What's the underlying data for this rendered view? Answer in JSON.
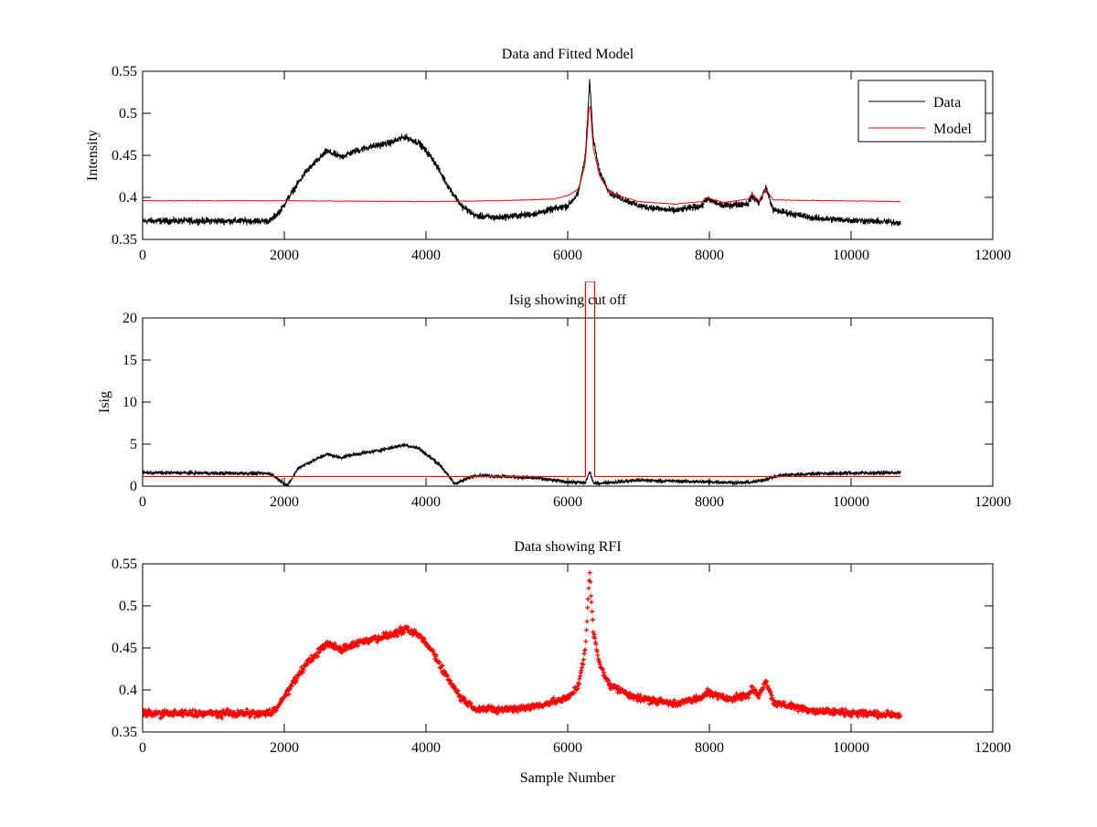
{
  "chart_data": [
    {
      "type": "line",
      "title": "Data and Fitted Model",
      "xlabel": "",
      "ylabel": "Intensity",
      "xlim": [
        0,
        12000
      ],
      "ylim": [
        0.35,
        0.55
      ],
      "xticks": [
        "0",
        "2000",
        "4000",
        "6000",
        "8000",
        "10000",
        "12000"
      ],
      "yticks": [
        "0.35",
        "0.4",
        "0.45",
        "0.5",
        "0.55"
      ],
      "legend": {
        "placement": "top-right",
        "entries": [
          "Data",
          "Model"
        ]
      },
      "series": [
        {
          "name": "Data",
          "color": "#000000",
          "noise": 0.006,
          "x": [
            0,
            1800,
            1950,
            2100,
            2300,
            2600,
            2800,
            3000,
            3200,
            3500,
            3700,
            3900,
            4100,
            4300,
            4500,
            4700,
            5000,
            5500,
            6000,
            6150,
            6250,
            6310,
            6360,
            6450,
            6600,
            7000,
            7500,
            7900,
            7950,
            8200,
            8550,
            8600,
            8700,
            8800,
            8900,
            9500,
            10700
          ],
          "y": [
            0.372,
            0.372,
            0.385,
            0.405,
            0.43,
            0.455,
            0.448,
            0.455,
            0.46,
            0.465,
            0.472,
            0.465,
            0.445,
            0.415,
            0.39,
            0.378,
            0.376,
            0.38,
            0.39,
            0.405,
            0.45,
            0.54,
            0.47,
            0.43,
            0.405,
            0.39,
            0.384,
            0.39,
            0.398,
            0.39,
            0.393,
            0.402,
            0.393,
            0.412,
            0.385,
            0.375,
            0.37
          ]
        },
        {
          "name": "Model",
          "color": "#ff0000",
          "noise": 0.0005,
          "x": [
            0,
            2000,
            4000,
            5000,
            5800,
            6000,
            6150,
            6250,
            6310,
            6360,
            6450,
            6600,
            7000,
            7500,
            7900,
            7950,
            8200,
            8550,
            8600,
            8700,
            8800,
            8900,
            10700
          ],
          "y": [
            0.396,
            0.396,
            0.395,
            0.396,
            0.398,
            0.402,
            0.41,
            0.44,
            0.52,
            0.46,
            0.425,
            0.405,
            0.395,
            0.392,
            0.395,
            0.4,
            0.394,
            0.398,
            0.404,
            0.396,
            0.41,
            0.397,
            0.395
          ]
        }
      ]
    },
    {
      "type": "line",
      "title": "Isig showing cut off",
      "xlabel": "",
      "ylabel": "Isig",
      "xlim": [
        0,
        12000
      ],
      "ylim": [
        0,
        20
      ],
      "xticks": [
        "0",
        "2000",
        "4000",
        "6000",
        "8000",
        "10000",
        "12000"
      ],
      "yticks": [
        "0",
        "5",
        "10",
        "15",
        "20"
      ],
      "series": [
        {
          "name": "Isig",
          "color": "#000000",
          "noise": 0.35,
          "x": [
            0,
            1800,
            1950,
            2050,
            2200,
            2600,
            2800,
            3000,
            3300,
            3700,
            3900,
            4200,
            4400,
            4500,
            4700,
            5500,
            6000,
            6250,
            6310,
            6370,
            6500,
            7000,
            8000,
            8500,
            8700,
            9000,
            9500,
            10700
          ],
          "y": [
            1.6,
            1.5,
            0.6,
            0.1,
            2.2,
            3.8,
            3.4,
            3.8,
            4.2,
            4.9,
            4.5,
            2.5,
            0.3,
            0.6,
            1.3,
            1.0,
            0.5,
            0.4,
            1.7,
            0.3,
            0.4,
            0.7,
            0.5,
            0.4,
            0.6,
            1.3,
            1.5,
            1.6
          ]
        },
        {
          "name": "Cut off",
          "color": "#ff0000",
          "threshold": 1.15,
          "cut_regions": [
            [
              6250,
              6380
            ]
          ],
          "x_range": [
            0,
            10700
          ]
        }
      ]
    },
    {
      "type": "scatter",
      "title": "Data showing RFI",
      "xlabel": "Sample Number",
      "ylabel": "",
      "xlim": [
        0,
        12000
      ],
      "ylim": [
        0.35,
        0.55
      ],
      "xticks": [
        "0",
        "2000",
        "4000",
        "6000",
        "8000",
        "10000",
        "12000"
      ],
      "yticks": [
        "0.35",
        "0.4",
        "0.45",
        "0.5",
        "0.55"
      ],
      "series": [
        {
          "name": "Data (RFI)",
          "color": "#ff0000",
          "marker": "+",
          "source": "same as Data series of first plot"
        }
      ]
    }
  ]
}
